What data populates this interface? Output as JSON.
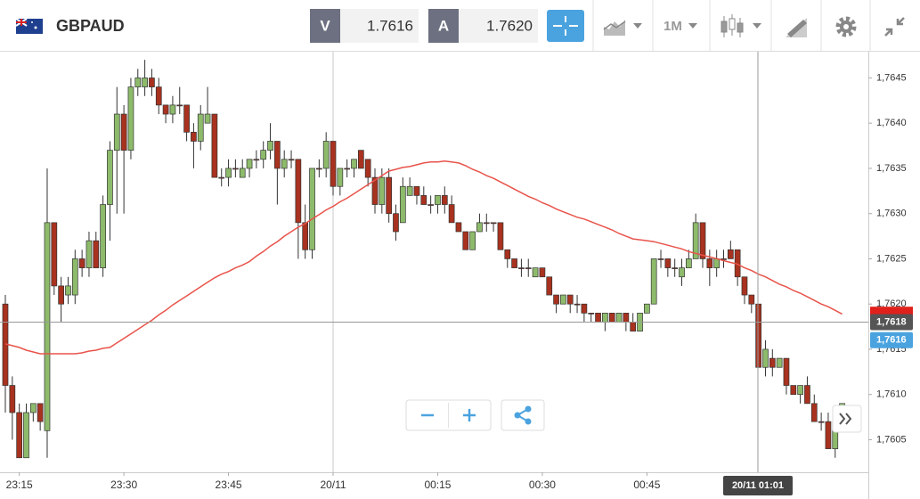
{
  "header": {
    "symbol": "GBPAUD",
    "sell_label": "V",
    "sell_price": "1.7616",
    "buy_label": "A",
    "buy_price": "1.7620",
    "timeframe": "1M"
  },
  "chart_data": {
    "type": "candlestick",
    "categories": [
      null,
      null,
      "23:15",
      null,
      null,
      null,
      null,
      null,
      null,
      null,
      null,
      null,
      null,
      null,
      null,
      null,
      null,
      "23:30",
      null,
      null,
      null,
      null,
      null,
      null,
      null,
      null,
      null,
      null,
      null,
      null,
      null,
      null,
      "23:45",
      null,
      null,
      null,
      null,
      null,
      null,
      null,
      null,
      null,
      null,
      null,
      null,
      null,
      null,
      "20/11",
      null,
      null,
      null,
      null,
      null,
      null,
      null,
      null,
      null,
      null,
      null,
      null,
      null,
      null,
      "00:15",
      null,
      null,
      null,
      null,
      null,
      null,
      null,
      null,
      null,
      null,
      null,
      null,
      null,
      null,
      "00:30",
      null,
      null,
      null,
      null,
      null,
      null,
      null,
      null,
      null,
      null,
      null,
      null,
      null,
      null,
      "00:45",
      null,
      null,
      null,
      null,
      null,
      null,
      null,
      null,
      null,
      null,
      null,
      null,
      null,
      null,
      null,
      null,
      null,
      null,
      null,
      null,
      null,
      null,
      null,
      null,
      null,
      null,
      null,
      null
    ],
    "open": [
      1.762,
      1.7611,
      1.7608,
      1.7603,
      1.7608,
      1.7609,
      1.7606,
      1.7629,
      1.7622,
      1.7621,
      1.7621,
      1.7625,
      1.7624,
      1.7627,
      1.7624,
      1.7631,
      1.7637,
      1.7641,
      1.7637,
      1.7644,
      1.7644,
      1.7645,
      1.7644,
      1.7642,
      1.7641,
      1.7642,
      1.7642,
      1.7639,
      1.7638,
      1.764,
      1.7641,
      1.7634,
      1.7634,
      1.7635,
      1.7634,
      1.7635,
      1.7636,
      1.7636,
      1.7637,
      1.7638,
      1.7635,
      1.7636,
      1.7636,
      1.7629,
      1.7626,
      1.7635,
      1.7635,
      1.7638,
      1.7633,
      1.7635,
      1.7635,
      1.7637,
      1.7636,
      1.7634,
      1.7631,
      1.7634,
      1.763,
      1.7629,
      1.7632,
      1.7633,
      1.7632,
      1.7631,
      1.7631,
      1.7632,
      1.7631,
      1.7629,
      1.7628,
      1.7626,
      1.7628,
      1.7629,
      1.7629,
      1.7629,
      1.7626,
      1.7625,
      1.7624,
      1.7624,
      1.7623,
      1.7624,
      1.7623,
      1.7621,
      1.762,
      1.7621,
      1.762,
      1.762,
      1.7619,
      1.7619,
      1.7618,
      1.7619,
      1.7618,
      1.7619,
      1.7618,
      1.7617,
      1.7619,
      1.762,
      1.7625,
      1.7625,
      1.7624,
      1.7623,
      1.7624,
      1.7625,
      1.7629,
      1.7625,
      1.7624,
      1.7625,
      1.7626,
      1.7626,
      1.7623,
      1.7621,
      1.762,
      1.7613,
      1.7614,
      1.7613,
      1.7614,
      1.7611,
      1.761,
      1.7611,
      1.7609,
      1.7607,
      1.7607,
      1.7604,
      1.7608
    ],
    "high": [
      1.7621,
      1.7612,
      1.7609,
      1.7609,
      1.7609,
      1.7609,
      1.7635,
      1.7629,
      1.7623,
      1.7623,
      1.7626,
      1.7626,
      1.7628,
      1.7628,
      1.7632,
      1.7638,
      1.7644,
      1.7642,
      1.7645,
      1.7646,
      1.7647,
      1.7646,
      1.7645,
      1.7642,
      1.7643,
      1.7644,
      1.7642,
      1.764,
      1.7642,
      1.7644,
      1.7641,
      1.7635,
      1.7636,
      1.7636,
      1.7636,
      1.7636,
      1.7637,
      1.7638,
      1.764,
      1.7638,
      1.7637,
      1.7637,
      1.7636,
      1.7631,
      1.7635,
      1.7636,
      1.7639,
      1.7638,
      1.7635,
      1.7636,
      1.7636,
      1.7637,
      1.7636,
      1.7635,
      1.7635,
      1.7635,
      1.7631,
      1.7634,
      1.7634,
      1.7633,
      1.7633,
      1.7632,
      1.7632,
      1.7633,
      1.7632,
      1.7629,
      1.7628,
      1.7628,
      1.763,
      1.763,
      1.7629,
      1.7629,
      1.7626,
      1.7625,
      1.7625,
      1.7625,
      1.7624,
      1.7624,
      1.7623,
      1.7621,
      1.7621,
      1.7621,
      1.7621,
      1.762,
      1.7619,
      1.7619,
      1.7619,
      1.7619,
      1.7619,
      1.7619,
      1.7619,
      1.7619,
      1.762,
      1.7625,
      1.7626,
      1.7625,
      1.7625,
      1.7625,
      1.7626,
      1.763,
      1.7629,
      1.7626,
      1.7626,
      1.7626,
      1.7627,
      1.7626,
      1.7623,
      1.7621,
      1.762,
      1.7616,
      1.7615,
      1.7614,
      1.7614,
      1.7611,
      1.7611,
      1.7612,
      1.761,
      1.7608,
      1.7608,
      1.7608,
      1.7609
    ],
    "low": [
      1.7608,
      1.7605,
      1.7603,
      1.7603,
      1.7607,
      1.7606,
      1.7603,
      1.7621,
      1.7618,
      1.762,
      1.762,
      1.7623,
      1.7623,
      1.7624,
      1.7623,
      1.7627,
      1.763,
      1.763,
      1.7636,
      1.7643,
      1.7643,
      1.7643,
      1.7641,
      1.764,
      1.764,
      1.7641,
      1.7638,
      1.7635,
      1.7637,
      1.764,
      1.7634,
      1.7633,
      1.7633,
      1.7634,
      1.7634,
      1.7634,
      1.7635,
      1.7635,
      1.7636,
      1.7631,
      1.7634,
      1.7635,
      1.7625,
      1.7625,
      1.7625,
      1.7634,
      1.7634,
      1.7632,
      1.7632,
      1.7634,
      1.7634,
      1.7635,
      1.7633,
      1.763,
      1.763,
      1.7629,
      1.7627,
      1.7629,
      1.7632,
      1.7631,
      1.7631,
      1.763,
      1.763,
      1.763,
      1.7629,
      1.7628,
      1.7626,
      1.7626,
      1.7628,
      1.7628,
      1.7628,
      1.7626,
      1.7624,
      1.7624,
      1.7623,
      1.7623,
      1.7623,
      1.7623,
      1.7621,
      1.7619,
      1.762,
      1.7619,
      1.7619,
      1.7618,
      1.7618,
      1.7618,
      1.7617,
      1.7618,
      1.7618,
      1.7617,
      1.7617,
      1.7617,
      1.7619,
      1.762,
      1.7624,
      1.7623,
      1.7623,
      1.7622,
      1.7624,
      1.7625,
      1.7624,
      1.7622,
      1.7623,
      1.7624,
      1.7625,
      1.7622,
      1.762,
      1.7619,
      1.7613,
      1.7612,
      1.7612,
      1.7613,
      1.761,
      1.761,
      1.7609,
      1.7609,
      1.7607,
      1.7606,
      1.7604,
      1.7603,
      1.7608
    ],
    "close": [
      1.7611,
      1.7608,
      1.7603,
      1.7608,
      1.7609,
      1.7607,
      1.7629,
      1.7622,
      1.762,
      1.7622,
      1.7625,
      1.7624,
      1.7627,
      1.7624,
      1.7631,
      1.7637,
      1.7641,
      1.7637,
      1.7644,
      1.7645,
      1.7645,
      1.7644,
      1.7642,
      1.7641,
      1.7642,
      1.7642,
      1.7639,
      1.7638,
      1.7641,
      1.7641,
      1.7634,
      1.7634,
      1.7635,
      1.7635,
      1.7635,
      1.7636,
      1.7636,
      1.7637,
      1.7638,
      1.7635,
      1.7636,
      1.7636,
      1.7629,
      1.7626,
      1.7635,
      1.7635,
      1.7638,
      1.7633,
      1.7635,
      1.7635,
      1.7636,
      1.7635,
      1.7634,
      1.7631,
      1.7634,
      1.763,
      1.7628,
      1.7633,
      1.7633,
      1.7632,
      1.7631,
      1.7631,
      1.7632,
      1.7631,
      1.7629,
      1.7628,
      1.7626,
      1.7628,
      1.7629,
      1.7629,
      1.7629,
      1.7626,
      1.7625,
      1.7624,
      1.7624,
      1.7624,
      1.7624,
      1.7623,
      1.7621,
      1.762,
      1.7621,
      1.762,
      1.762,
      1.7619,
      1.7619,
      1.7618,
      1.7619,
      1.7618,
      1.7619,
      1.7618,
      1.7617,
      1.7619,
      1.762,
      1.7625,
      1.7625,
      1.7624,
      1.7624,
      1.7624,
      1.7625,
      1.7629,
      1.7625,
      1.7624,
      1.7625,
      1.7625,
      1.7625,
      1.7623,
      1.7621,
      1.762,
      1.7613,
      1.7615,
      1.7613,
      1.7614,
      1.7611,
      1.761,
      1.7611,
      1.7609,
      1.7607,
      1.7607,
      1.7604,
      1.7607,
      1.7609
    ],
    "up_color": "#8dbb6b",
    "down_color": "#a8321f",
    "moving_average": {
      "color": "#e8534a",
      "values": [
        1.76156,
        1.76154,
        1.76152,
        1.76149,
        1.76147,
        1.76145,
        1.76145,
        1.76145,
        1.76145,
        1.76145,
        1.76145,
        1.76146,
        1.76148,
        1.76149,
        1.76151,
        1.76152,
        1.76157,
        1.76162,
        1.76167,
        1.76172,
        1.76177,
        1.76182,
        1.76188,
        1.76193,
        1.76199,
        1.76204,
        1.76209,
        1.76214,
        1.76219,
        1.76224,
        1.76229,
        1.76233,
        1.76236,
        1.7624,
        1.76243,
        1.76247,
        1.76253,
        1.76258,
        1.76264,
        1.76269,
        1.76275,
        1.7628,
        1.76285,
        1.76289,
        1.76294,
        1.76299,
        1.76304,
        1.76308,
        1.76313,
        1.76317,
        1.76322,
        1.76327,
        1.76332,
        1.76337,
        1.76342,
        1.76347,
        1.76349,
        1.76351,
        1.76352,
        1.76354,
        1.76356,
        1.76357,
        1.76357,
        1.76358,
        1.76357,
        1.76356,
        1.76353,
        1.76349,
        1.76346,
        1.76342,
        1.76339,
        1.76335,
        1.76331,
        1.76327,
        1.76323,
        1.76319,
        1.76316,
        1.76312,
        1.76309,
        1.76305,
        1.76302,
        1.76299,
        1.76296,
        1.76294,
        1.76291,
        1.76288,
        1.76285,
        1.76282,
        1.76278,
        1.76275,
        1.76272,
        1.76271,
        1.7627,
        1.76269,
        1.76267,
        1.76265,
        1.76263,
        1.76261,
        1.76258,
        1.76256,
        1.76254,
        1.76252,
        1.7625,
        1.76248,
        1.76246,
        1.76244,
        1.7624,
        1.76237,
        1.76233,
        1.7623,
        1.76226,
        1.76222,
        1.76219,
        1.76215,
        1.76212,
        1.76208,
        1.76204,
        1.762,
        1.76197,
        1.76193,
        1.76189
      ]
    },
    "ylim": [
      1.76014,
      1.76479
    ],
    "yticks": [
      {
        "value": 1.7605,
        "label": "1,7605"
      },
      {
        "value": 1.761,
        "label": "1,7610"
      },
      {
        "value": 1.7615,
        "label": "1,7615"
      },
      {
        "value": 1.762,
        "label": "1,7620"
      },
      {
        "value": 1.7625,
        "label": "1,7625"
      },
      {
        "value": 1.763,
        "label": "1,7630"
      },
      {
        "value": 1.7635,
        "label": "1,7635"
      },
      {
        "value": 1.764,
        "label": "1,7640"
      },
      {
        "value": 1.7645,
        "label": "1,7645"
      }
    ],
    "ask_line": {
      "value": 1.762,
      "color": "#e0201b"
    },
    "bid_line": {
      "value": 1.7616,
      "label": "1,7616",
      "color": "#4aa3df"
    },
    "crosshair": {
      "value": 1.7618,
      "label": "1,7618",
      "x_label": "20/11 01:01"
    }
  }
}
